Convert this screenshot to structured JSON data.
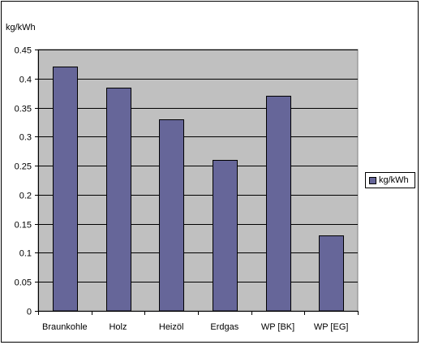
{
  "chart_data": {
    "type": "bar",
    "title": "",
    "ylabel": "kg/kWh",
    "xlabel": "",
    "categories": [
      "Braunkohle",
      "Holz",
      "Heizöl",
      "Erdgas",
      "WP [BK]",
      "WP [EG]"
    ],
    "series": [
      {
        "name": "kg/kWh",
        "values": [
          0.42,
          0.385,
          0.33,
          0.26,
          0.37,
          0.13
        ]
      }
    ],
    "ylim": [
      0,
      0.45
    ],
    "yticks": [
      "0",
      "0.05",
      "0.1",
      "0.15",
      "0.2",
      "0.25",
      "0.3",
      "0.35",
      "0.4",
      "0.45"
    ],
    "grid": true,
    "legend_position": "right",
    "colors": {
      "bar": "#666699",
      "plot_background": "#c0c0c0",
      "grid": "#000000"
    }
  }
}
